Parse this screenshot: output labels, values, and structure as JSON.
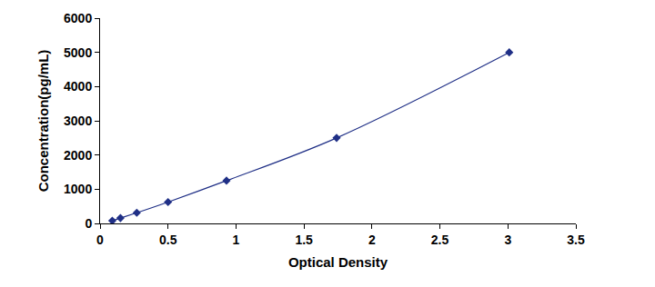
{
  "chart_data": {
    "type": "line",
    "x_label": "Optical Density",
    "y_label": "Concentration(pg/mL)",
    "x": [
      0.09,
      0.15,
      0.27,
      0.5,
      0.93,
      1.74,
      3.01
    ],
    "values": [
      78,
      156,
      312,
      625,
      1250,
      2500,
      5000
    ],
    "color": "#1f2f86",
    "marker": "diamond",
    "line_style": "solid",
    "xlim": [
      0,
      3.5
    ],
    "xticks": [
      0,
      0.5,
      1,
      1.5,
      2,
      2.5,
      3,
      3.5
    ],
    "ylim": [
      0,
      6000
    ],
    "yticks": [
      0,
      1000,
      2000,
      3000,
      4000,
      5000,
      6000
    ],
    "grid": false
  }
}
